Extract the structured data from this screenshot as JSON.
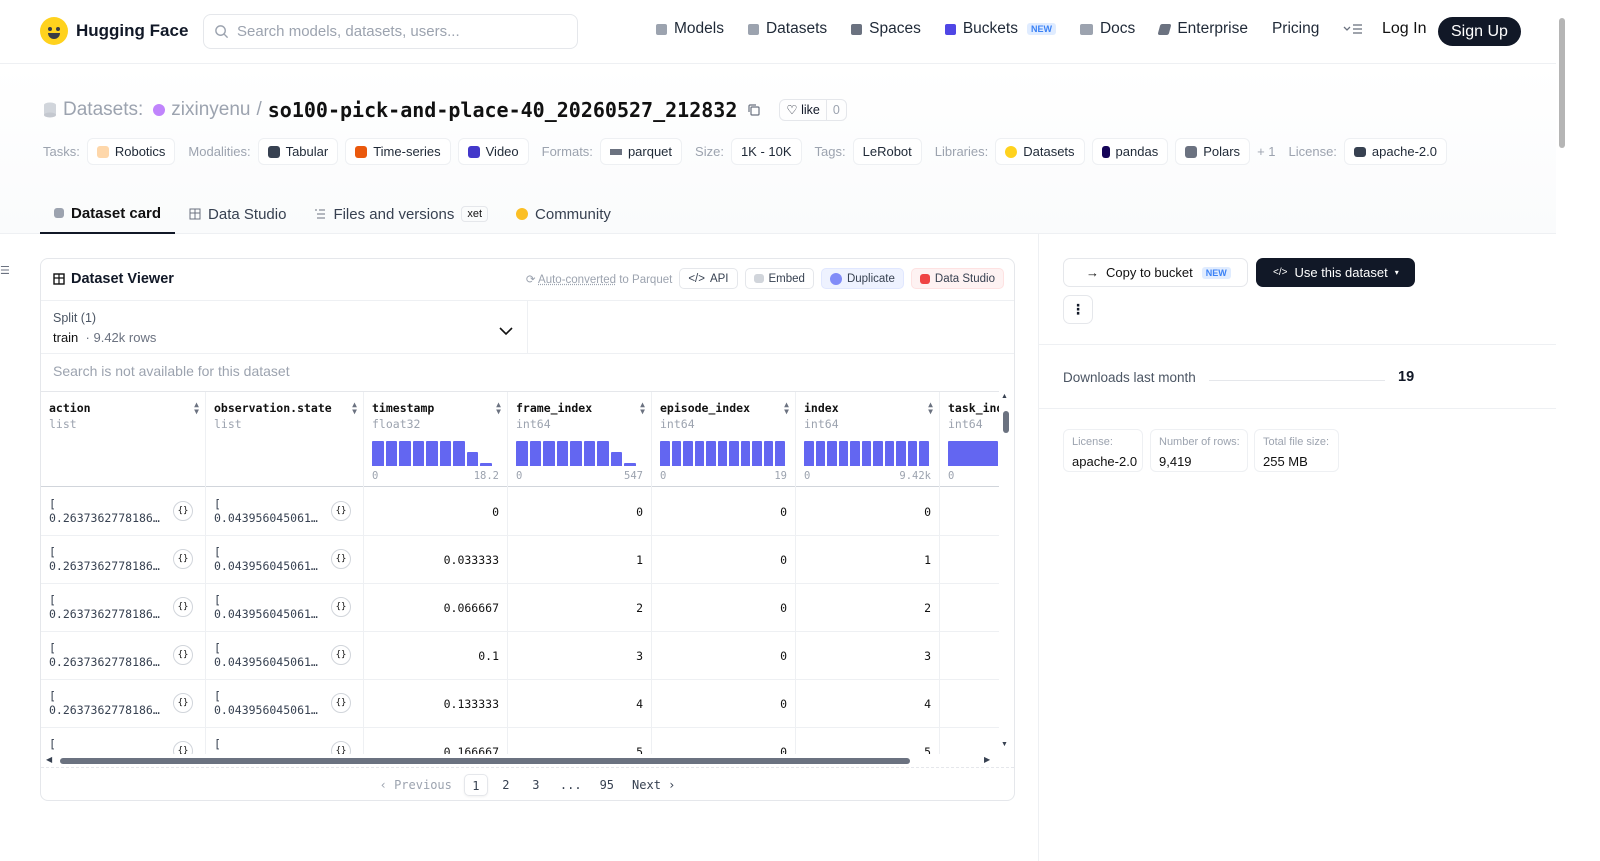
{
  "nav": {
    "brand": "Hugging Face",
    "search_placeholder": "Search models, datasets, users...",
    "items": [
      {
        "label": "Models",
        "icon": "cube-icon"
      },
      {
        "label": "Datasets",
        "icon": "database-icon"
      },
      {
        "label": "Spaces",
        "icon": "grid-icon"
      },
      {
        "label": "Buckets",
        "icon": "bucket-icon",
        "badge": "NEW"
      },
      {
        "label": "Docs",
        "icon": "book-icon"
      },
      {
        "label": "Enterprise",
        "icon": "enterprise-icon"
      },
      {
        "label": "Pricing"
      }
    ],
    "login": "Log In",
    "signup": "Sign Up"
  },
  "header": {
    "type_label": "Datasets:",
    "user": "zixinyenu",
    "separator": "/",
    "repo": "so100-pick-and-place-40_20260527_212832",
    "like_label": "like",
    "like_count": "0",
    "tags": {
      "tasks_label": "Tasks:",
      "task": "Robotics",
      "modalities_label": "Modalities:",
      "modalities": [
        "Tabular",
        "Time-series",
        "Video"
      ],
      "formats_label": "Formats:",
      "format": "parquet",
      "size_label": "Size:",
      "size": "1K - 10K",
      "tags_label": "Tags:",
      "tag": "LeRobot",
      "libraries_label": "Libraries:",
      "libraries": [
        "Datasets",
        "pandas",
        "Polars"
      ],
      "libraries_more": "+ 1",
      "license_label": "License:",
      "license": "apache-2.0"
    }
  },
  "tabs": [
    {
      "label": "Dataset card",
      "active": true
    },
    {
      "label": "Data Studio"
    },
    {
      "label": "Files and versions",
      "badge": "xet"
    },
    {
      "label": "Community"
    }
  ],
  "viewer": {
    "title": "Dataset Viewer",
    "auto_converted": "Auto-converted",
    "to_parquet": " to Parquet",
    "actions": [
      "API",
      "Embed",
      "Duplicate",
      "Data Studio"
    ],
    "split_label": "Split (1)",
    "split_value": "train",
    "split_rows": "· 9.42k rows",
    "search_note": "Search is not available for this dataset",
    "columns": [
      {
        "name": "action",
        "type": "list"
      },
      {
        "name": "observation.state",
        "type": "list"
      },
      {
        "name": "timestamp",
        "type": "float32",
        "hist_min": "0",
        "hist_max": "18.2",
        "hist": [
          1,
          1,
          1,
          1,
          1,
          1,
          1,
          0.55,
          0.12
        ]
      },
      {
        "name": "frame_index",
        "type": "int64",
        "hist_min": "0",
        "hist_max": "547",
        "hist": [
          1,
          1,
          1,
          1,
          1,
          1,
          1,
          0.55,
          0.12
        ]
      },
      {
        "name": "episode_index",
        "type": "int64",
        "hist_min": "0",
        "hist_max": "19",
        "hist": [
          1,
          1,
          1,
          1,
          1,
          1,
          1,
          1,
          1,
          1,
          1
        ]
      },
      {
        "name": "index",
        "type": "int64",
        "hist_min": "0",
        "hist_max": "9.42k",
        "hist": [
          1,
          1,
          1,
          1,
          1,
          1,
          1,
          1,
          1,
          1,
          1
        ]
      },
      {
        "name": "task_index",
        "type": "int64",
        "hist_min": "0",
        "hist_max": "",
        "hist": [
          1
        ]
      }
    ],
    "rows": [
      {
        "action": "0.2637362778186…",
        "state": "0.043956045061…",
        "timestamp": "0",
        "frame_index": "0",
        "episode_index": "0",
        "index": "0"
      },
      {
        "action": "0.2637362778186…",
        "state": "0.043956045061…",
        "timestamp": "0.033333",
        "frame_index": "1",
        "episode_index": "0",
        "index": "1"
      },
      {
        "action": "0.2637362778186…",
        "state": "0.043956045061…",
        "timestamp": "0.066667",
        "frame_index": "2",
        "episode_index": "0",
        "index": "2"
      },
      {
        "action": "0.2637362778186…",
        "state": "0.043956045061…",
        "timestamp": "0.1",
        "frame_index": "3",
        "episode_index": "0",
        "index": "3"
      },
      {
        "action": "0.2637362778186…",
        "state": "0.043956045061…",
        "timestamp": "0.133333",
        "frame_index": "4",
        "episode_index": "0",
        "index": "4"
      },
      {
        "action": "",
        "state": "",
        "timestamp": "0.166667",
        "frame_index": "5",
        "episode_index": "0",
        "index": "5"
      }
    ],
    "pager": {
      "prev": "Previous",
      "pages": [
        "1",
        "2",
        "3",
        "...",
        "95"
      ],
      "next": "Next",
      "current": "1"
    }
  },
  "sidebar": {
    "copy_label": "Copy to bucket",
    "copy_badge": "NEW",
    "use_label": "Use this dataset",
    "downloads_label": "Downloads last month",
    "downloads_value": "19",
    "stats": [
      {
        "key": "License:",
        "value": "apache-2.0"
      },
      {
        "key": "Number of rows:",
        "value": "9,419"
      },
      {
        "key": "Total file size:",
        "value": "255 MB"
      }
    ]
  }
}
